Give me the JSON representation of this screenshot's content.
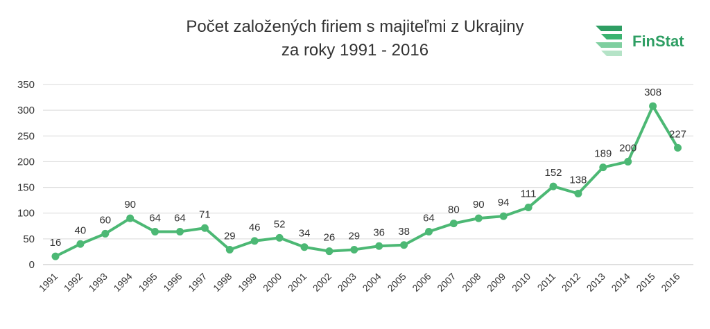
{
  "header": {
    "title_line1": "Počet založených firiem s majiteľmi z Ukrajiny",
    "title_line2": "za roky 1991 - 2016"
  },
  "logo": {
    "text": "FinStat",
    "color": "#2e9e63"
  },
  "chart_data": {
    "type": "line",
    "title": "Počet založených firiem s majiteľmi z Ukrajiny za roky 1991 - 2016",
    "xlabel": "",
    "ylabel": "",
    "ylim": [
      0,
      350
    ],
    "yticks": [
      0,
      50,
      100,
      150,
      200,
      250,
      300,
      350
    ],
    "grid": true,
    "line_color": "#4cb874",
    "categories": [
      "1991",
      "1992",
      "1993",
      "1994",
      "1995",
      "1996",
      "1997",
      "1998",
      "1999",
      "2000",
      "2001",
      "2002",
      "2003",
      "2004",
      "2005",
      "2006",
      "2007",
      "2008",
      "2009",
      "2010",
      "2011",
      "2012",
      "2013",
      "2014",
      "2015",
      "2016"
    ],
    "series": [
      {
        "values": [
          16,
          40,
          60,
          90,
          64,
          64,
          71,
          29,
          46,
          52,
          34,
          26,
          29,
          36,
          38,
          64,
          80,
          90,
          94,
          111,
          152,
          138,
          189,
          200,
          308,
          227
        ]
      }
    ]
  }
}
